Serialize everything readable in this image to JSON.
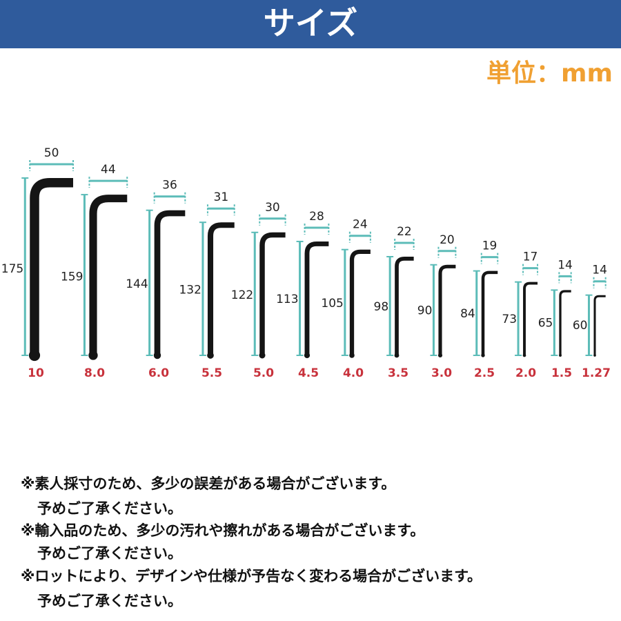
{
  "header": {
    "title": "サイズ"
  },
  "unit": "単位：mm",
  "wrenches": [
    {
      "size": "10",
      "length": "175",
      "width": "50"
    },
    {
      "size": "8.0",
      "length": "159",
      "width": "44"
    },
    {
      "size": "6.0",
      "length": "144",
      "width": "36"
    },
    {
      "size": "5.5",
      "length": "132",
      "width": "31"
    },
    {
      "size": "5.0",
      "length": "122",
      "width": "30"
    },
    {
      "size": "4.5",
      "length": "113",
      "width": "28"
    },
    {
      "size": "4.0",
      "length": "105",
      "width": "24"
    },
    {
      "size": "3.5",
      "length": "98",
      "width": "22"
    },
    {
      "size": "3.0",
      "length": "90",
      "width": "20"
    },
    {
      "size": "2.5",
      "length": "84",
      "width": "19"
    },
    {
      "size": "2.0",
      "length": "73",
      "width": "17"
    },
    {
      "size": "1.5",
      "length": "65",
      "width": "14"
    },
    {
      "size": "1.27",
      "length": "60",
      "width": "14"
    }
  ],
  "notes": [
    {
      "line1": "※素人採寸のため、多少の誤差がある場合がございます。",
      "line2": "予めご了承ください。"
    },
    {
      "line1": "※輸入品のため、多少の汚れや擦れがある場合がございます。",
      "line2": "予めご了承ください。"
    },
    {
      "line1": "※ロットにより、デザインや仕様が予告なく変わる場合がございます。",
      "line2": "予めご了承ください。"
    }
  ]
}
